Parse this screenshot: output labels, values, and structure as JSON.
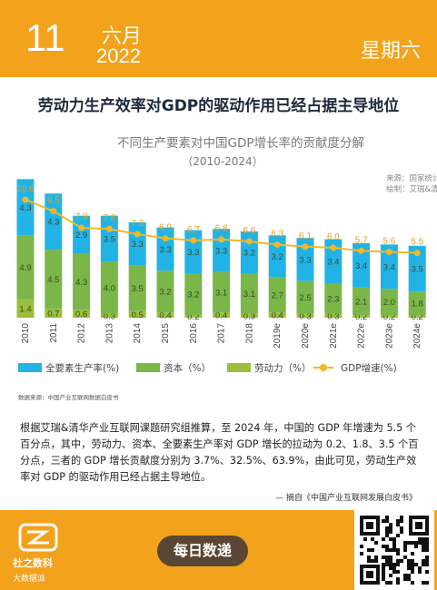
{
  "header": {
    "day": "11",
    "month": "六月",
    "year": "2022",
    "weekday": "星期六"
  },
  "headline": "劳动力生产效率对GDP的驱动作用已经占据主导地位",
  "chart_data": {
    "type": "bar",
    "title": "不同生产要素对中国GDP增长率的贡献度分解",
    "subtitle": "（2010-2024）",
    "source_lines": [
      "来源：国家统计局",
      "绘制：艾瑞&清华大学"
    ],
    "categories": [
      "2010",
      "2011",
      "2012",
      "2013",
      "2014",
      "2015",
      "2016",
      "2017",
      "2018",
      "2019e",
      "2020e",
      "2021e",
      "2022e",
      "2023e",
      "2024e"
    ],
    "series": [
      {
        "name": "劳动力（%）",
        "color": "#9bbf3b",
        "values": [
          1.4,
          0.7,
          0.6,
          0.3,
          0.5,
          0.4,
          0.2,
          0.4,
          0.3,
          0.4,
          0.3,
          0.3,
          0.2,
          0.2,
          0.2
        ]
      },
      {
        "name": "资本（%）",
        "color": "#7ab648",
        "values": [
          4.9,
          4.5,
          4.3,
          4.0,
          3.5,
          3.2,
          3.2,
          3.1,
          3.1,
          2.7,
          2.5,
          2.3,
          2.1,
          2.0,
          1.8
        ]
      },
      {
        "name": "全要素生产率(%)",
        "color": "#22b3e6",
        "values": [
          4.3,
          4.3,
          2.9,
          3.5,
          3.3,
          3.3,
          3.3,
          3.3,
          3.2,
          3.2,
          3.3,
          3.4,
          3.4,
          3.4,
          3.5
        ]
      }
    ],
    "line": {
      "name": "GDP增速(%)",
      "color": "#f2b826",
      "values": [
        10.6,
        9.5,
        7.9,
        7.8,
        7.3,
        6.9,
        6.7,
        6.8,
        6.6,
        6.3,
        6.1,
        6.0,
        5.7,
        5.6,
        5.5
      ]
    },
    "legend": [
      "全要素生产率(%)",
      "资本（%）",
      "劳动力（%）",
      "GDP增速(%)"
    ],
    "ylim": [
      0,
      11
    ]
  },
  "source_note": "数据来源：中国产业互联网数据白皮书",
  "paragraph": "根据艾瑞&清华产业互联网课题研究组推算，至 2024 年，中国的 GDP 年增速为 5.5 个百分点，其中，劳动力、资本、全要素生产率对 GDP 增长的拉动为 0.2、1.8、3.5 个百分点，三者的 GDP 增长贡献度分别为 3.7%、32.5%、63.9%，由此可见，劳动生产效率对 GDP 的驱动作用已经占据主导地位。",
  "attribution": "— 摘自《中国产业互联网发展白皮书》",
  "footer": {
    "logo_text": "社之数科",
    "logo_sub": "大数据派",
    "daily_button": "每日数递"
  },
  "colors": {
    "accent": "#f3a21b",
    "button": "#5a4634"
  },
  "icons": {
    "logo": "logo-mark-icon",
    "qr": "qr-code-icon"
  }
}
